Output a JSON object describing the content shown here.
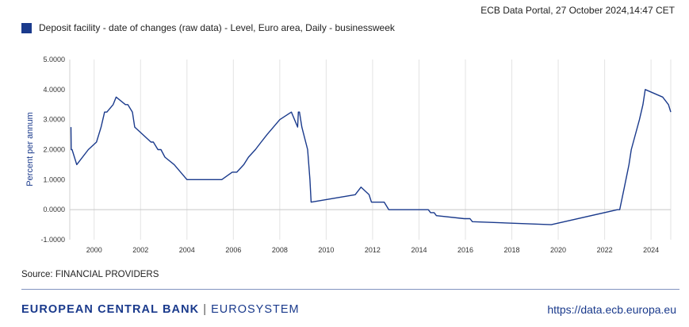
{
  "header": {
    "timestamp": "ECB Data Portal, 27 October 2024,14:47 CET"
  },
  "chart_data": {
    "type": "line",
    "legend": "Deposit facility - date of changes (raw data) - Level, Euro area, Daily - businessweek",
    "ylabel": "Percent per annum",
    "xlabel": "",
    "ylim": [
      -1,
      5
    ],
    "xlim": [
      1998.95,
      2024.85
    ],
    "yticks": [
      "5.0000",
      "4.0000",
      "3.0000",
      "2.0000",
      "1.0000",
      "0.0000",
      "-1.0000"
    ],
    "ytick_values": [
      5,
      4,
      3,
      2,
      1,
      0,
      -1
    ],
    "xticks": [
      "2000",
      "2002",
      "2004",
      "2006",
      "2008",
      "2010",
      "2012",
      "2014",
      "2016",
      "2018",
      "2020",
      "2022",
      "2024"
    ],
    "xtick_values": [
      2000,
      2002,
      2004,
      2006,
      2008,
      2010,
      2012,
      2014,
      2016,
      2018,
      2020,
      2022,
      2024
    ],
    "grid": "vertical",
    "line_color": "#1a3a8c",
    "series": [
      {
        "name": "Deposit facility - date of changes (raw data) - Level, Euro area, Daily - businessweek",
        "x": [
          1999.0,
          1999.01,
          1999.05,
          1999.25,
          1999.75,
          2000.1,
          2000.2,
          2000.3,
          2000.45,
          2000.55,
          2000.82,
          2000.95,
          2001.35,
          2001.45,
          2001.65,
          2001.75,
          2002.45,
          2002.55,
          2002.75,
          2002.88,
          2003.05,
          2003.45,
          2004.0,
          2005.5,
          2005.95,
          2006.15,
          2006.45,
          2006.65,
          2006.95,
          2007.2,
          2007.45,
          2008.0,
          2008.5,
          2008.77,
          2008.8,
          2008.85,
          2008.95,
          2009.2,
          2009.3,
          2009.35,
          2011.25,
          2011.5,
          2011.85,
          2011.95,
          2012.5,
          2012.7,
          2013.0,
          2014.4,
          2014.5,
          2014.65,
          2014.75,
          2015.95,
          2016.2,
          2016.3,
          2019.7,
          2022.55,
          2022.65,
          2022.85,
          2023.05,
          2023.15,
          2023.5,
          2023.65,
          2023.75,
          2024.5,
          2024.75,
          2024.85
        ],
        "y": [
          2.75,
          2.0,
          2.0,
          1.5,
          2.0,
          2.25,
          2.5,
          2.75,
          3.25,
          3.25,
          3.5,
          3.75,
          3.5,
          3.5,
          3.25,
          2.75,
          2.25,
          2.25,
          2.0,
          2.0,
          1.75,
          1.5,
          1.0,
          1.0,
          1.25,
          1.25,
          1.5,
          1.75,
          2.0,
          2.25,
          2.5,
          3.0,
          3.25,
          2.75,
          3.25,
          3.25,
          2.75,
          2.0,
          1.0,
          0.25,
          0.5,
          0.75,
          0.5,
          0.25,
          0.25,
          0.0,
          0.0,
          0.0,
          -0.1,
          -0.1,
          -0.2,
          -0.3,
          -0.3,
          -0.4,
          -0.5,
          0.0,
          0.0,
          0.75,
          1.5,
          2.0,
          3.0,
          3.5,
          4.0,
          3.75,
          3.5,
          3.25
        ]
      }
    ]
  },
  "source_text": "Source: FINANCIAL PROVIDERS",
  "footer": {
    "bank": "EUROPEAN CENTRAL BANK",
    "separator": "|",
    "system": "EUROSYSTEM",
    "url": "https://data.ecb.europa.eu"
  }
}
